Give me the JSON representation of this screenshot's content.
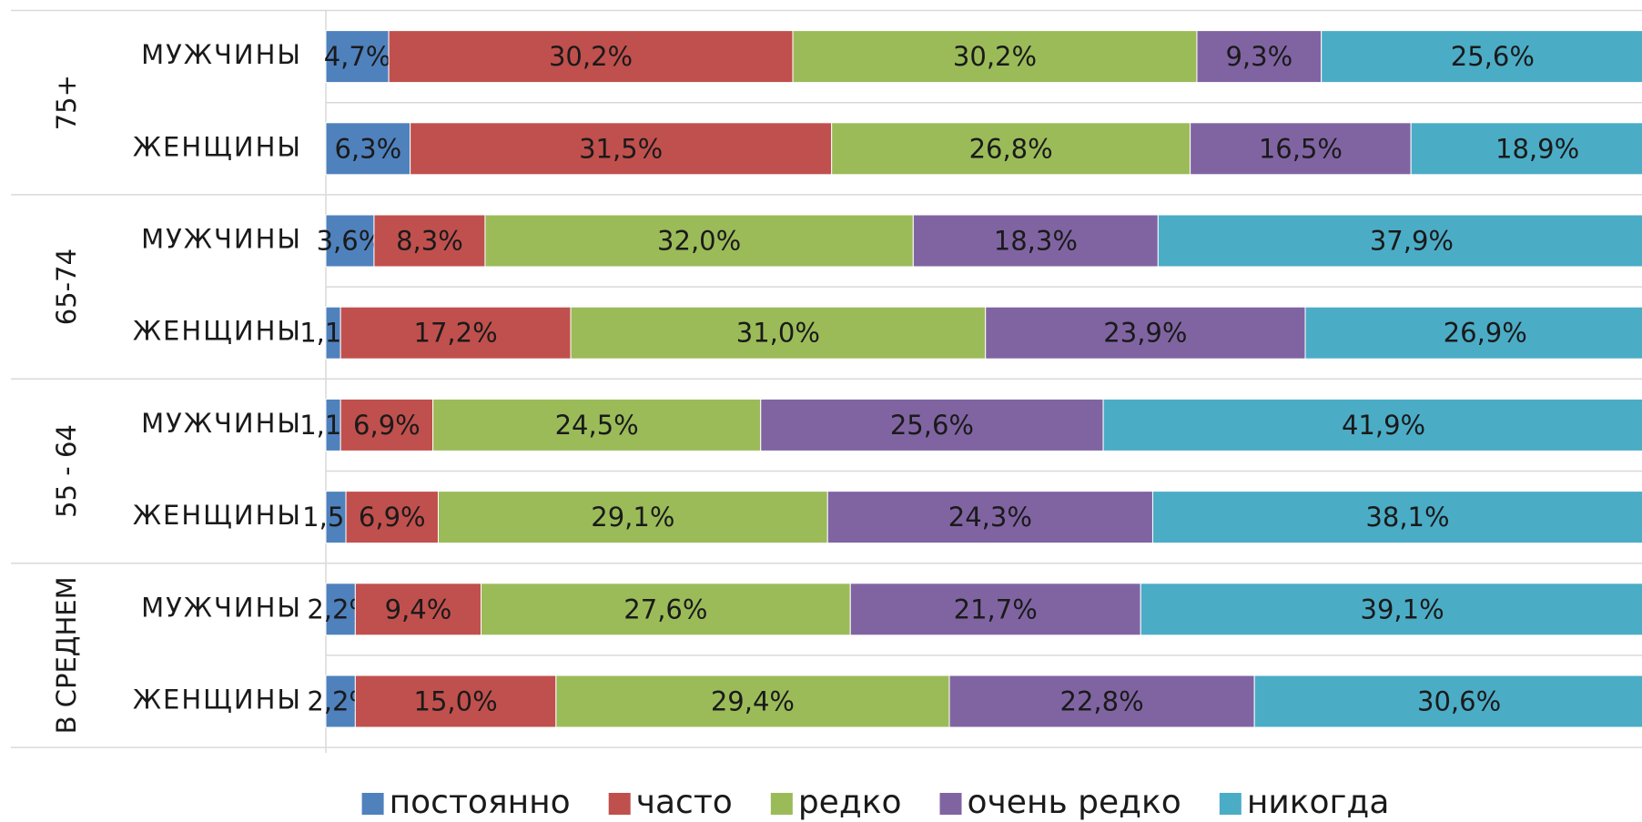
{
  "chart_data": {
    "type": "stacked-bar-horizontal",
    "groups": [
      "75+",
      "65-74",
      "55 - 64",
      "В СРЕДНЕМ"
    ],
    "categories": [
      "МУЖЧИНЫ",
      "ЖЕНЩИНЫ",
      "МУЖЧИНЫ",
      "ЖЕНЩИНЫ",
      "МУЖЧИНЫ",
      "ЖЕНЩИНЫ",
      "МУЖЧИНЫ",
      "ЖЕНЩИНЫ"
    ],
    "xlim": [
      0,
      100
    ],
    "series": [
      {
        "name": "постоянно",
        "color": "#4f81bd",
        "values": [
          4.7,
          6.3,
          3.6,
          1.1,
          1.1,
          1.5,
          2.2,
          2.2
        ],
        "value_labels": [
          "4,7%",
          "6,3%",
          "3,6%",
          "1,1%",
          "1,1%",
          "1,5%",
          "2,2%",
          "2,2%"
        ]
      },
      {
        "name": "часто",
        "color": "#c0504d",
        "values": [
          30.2,
          31.5,
          8.3,
          17.2,
          6.9,
          6.9,
          9.4,
          15.0
        ],
        "value_labels": [
          "30,2%",
          "31,5%",
          "8,3%",
          "17,2%",
          "6,9%",
          "6,9%",
          "9,4%",
          "15,0%"
        ]
      },
      {
        "name": "редко",
        "color": "#9bbb59",
        "values": [
          30.2,
          26.8,
          32.0,
          31.0,
          24.5,
          29.1,
          27.6,
          29.4
        ],
        "value_labels": [
          "30,2%",
          "26,8%",
          "32,0%",
          "31,0%",
          "24,5%",
          "29,1%",
          "27,6%",
          "29,4%"
        ]
      },
      {
        "name": "очень редко",
        "color": "#8064a2",
        "values": [
          9.3,
          16.5,
          18.3,
          23.9,
          25.6,
          24.3,
          21.7,
          22.8
        ],
        "value_labels": [
          "9,3%",
          "16,5%",
          "18,3%",
          "23,9%",
          "25,6%",
          "24,3%",
          "21,7%",
          "22,8%"
        ]
      },
      {
        "name": "никогда",
        "color": "#4bacc6",
        "values": [
          25.6,
          18.9,
          37.9,
          26.9,
          41.9,
          38.1,
          39.1,
          30.6
        ],
        "value_labels": [
          "25,6%",
          "18,9%",
          "37,9%",
          "26,9%",
          "41,9%",
          "38,1%",
          "39,1%",
          "30,6%"
        ]
      }
    ],
    "legend": "bottom"
  }
}
